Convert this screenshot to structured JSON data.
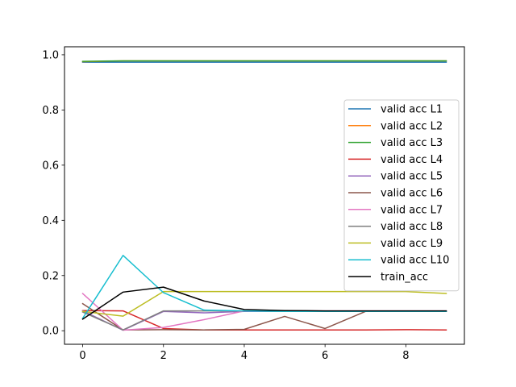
{
  "chart_data": {
    "type": "line",
    "title": "",
    "xlabel": "",
    "ylabel": "",
    "x": [
      0,
      1,
      2,
      3,
      4,
      5,
      6,
      7,
      8,
      9
    ],
    "xlim": [
      -0.45,
      9.45
    ],
    "ylim": [
      -0.049,
      1.029
    ],
    "xticks": [
      0,
      2,
      4,
      6,
      8
    ],
    "yticks": [
      0.0,
      0.2,
      0.4,
      0.6,
      0.8,
      1.0
    ],
    "xtick_labels": [
      "0",
      "2",
      "4",
      "6",
      "8"
    ],
    "ytick_labels": [
      "0.0",
      "0.2",
      "0.4",
      "0.6",
      "0.8",
      "1.0"
    ],
    "grid": false,
    "legend_position": "center-right",
    "series": [
      {
        "name": "valid acc L1",
        "color": "#1f77b4",
        "values": [
          0.973,
          0.973,
          0.973,
          0.973,
          0.973,
          0.973,
          0.973,
          0.973,
          0.973,
          0.973
        ]
      },
      {
        "name": "valid acc L2",
        "color": "#ff7f0e",
        "values": [
          0.975,
          0.978,
          0.978,
          0.978,
          0.978,
          0.978,
          0.978,
          0.978,
          0.978,
          0.978
        ]
      },
      {
        "name": "valid acc L3",
        "color": "#2ca02c",
        "values": [
          0.976,
          0.978,
          0.978,
          0.978,
          0.978,
          0.978,
          0.978,
          0.978,
          0.978,
          0.978
        ]
      },
      {
        "name": "valid acc L4",
        "color": "#d62728",
        "values": [
          0.073,
          0.072,
          0.008,
          0.003,
          0.003,
          0.003,
          0.003,
          0.003,
          0.004,
          0.003
        ]
      },
      {
        "name": "valid acc L5",
        "color": "#9467bd",
        "values": [
          0.072,
          0.002,
          0.07,
          0.065,
          0.07,
          0.07,
          0.07,
          0.07,
          0.07,
          0.07
        ]
      },
      {
        "name": "valid acc L6",
        "color": "#8c564b",
        "values": [
          0.098,
          0.003,
          0.004,
          0.003,
          0.005,
          0.052,
          0.008,
          0.07,
          0.07,
          0.07
        ]
      },
      {
        "name": "valid acc L7",
        "color": "#e377c2",
        "values": [
          0.135,
          0.002,
          0.012,
          0.04,
          0.072,
          0.072,
          0.072,
          0.072,
          0.072,
          0.072
        ]
      },
      {
        "name": "valid acc L8",
        "color": "#7f7f7f",
        "values": [
          0.068,
          0.003,
          0.072,
          0.072,
          0.072,
          0.07,
          0.07,
          0.07,
          0.07,
          0.07
        ]
      },
      {
        "name": "valid acc L9",
        "color": "#bcbd22",
        "values": [
          0.07,
          0.053,
          0.142,
          0.142,
          0.142,
          0.142,
          0.142,
          0.142,
          0.142,
          0.135
        ]
      },
      {
        "name": "valid acc L10",
        "color": "#17becf",
        "values": [
          0.045,
          0.273,
          0.138,
          0.075,
          0.072,
          0.07,
          0.07,
          0.07,
          0.07,
          0.07
        ]
      },
      {
        "name": "train_acc",
        "color": "#000000",
        "values": [
          0.042,
          0.14,
          0.158,
          0.108,
          0.077,
          0.073,
          0.072,
          0.072,
          0.072,
          0.072
        ]
      }
    ]
  }
}
